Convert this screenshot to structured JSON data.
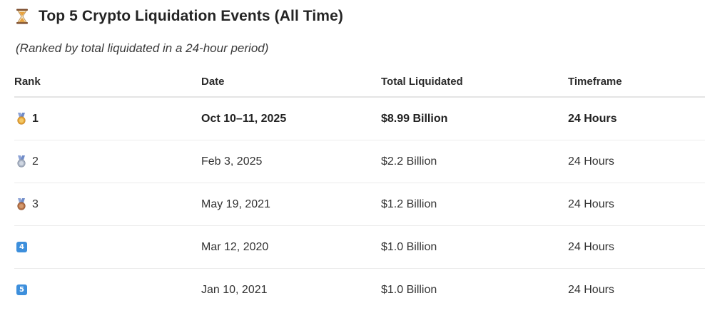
{
  "header": {
    "title": "Top 5 Crypto Liquidation Events (All Time)",
    "icon": "hourglass-icon",
    "subtitle": "(Ranked by total liquidated in a 24-hour period)"
  },
  "table": {
    "columns": [
      "Rank",
      "Date",
      "Total Liquidated",
      "Timeframe"
    ],
    "rows": [
      {
        "rank": "1",
        "rank_icon": "gold-medal-icon",
        "date": "Oct 10–11, 2025",
        "total": "$8.99 Billion",
        "timeframe": "24 Hours",
        "emphasized": true
      },
      {
        "rank": "2",
        "rank_icon": "silver-medal-icon",
        "date": "Feb 3, 2025",
        "total": "$2.2 Billion",
        "timeframe": "24 Hours",
        "emphasized": false
      },
      {
        "rank": "3",
        "rank_icon": "bronze-medal-icon",
        "date": "May 19, 2021",
        "total": "$1.2 Billion",
        "timeframe": "24 Hours",
        "emphasized": false
      },
      {
        "rank": "4",
        "rank_icon": "keycap-4-icon",
        "date": "Mar 12, 2020",
        "total": "$1.0 Billion",
        "timeframe": "24 Hours",
        "emphasized": false
      },
      {
        "rank": "5",
        "rank_icon": "keycap-5-icon",
        "date": "Jan 10, 2021",
        "total": "$1.0 Billion",
        "timeframe": "24 Hours",
        "emphasized": false
      }
    ]
  },
  "colors": {
    "gold": "#e8a93a",
    "silver": "#aab4c4",
    "bronze": "#b8744a",
    "ribbon": "#8da3d6",
    "keycap": "#3d8fdc"
  }
}
